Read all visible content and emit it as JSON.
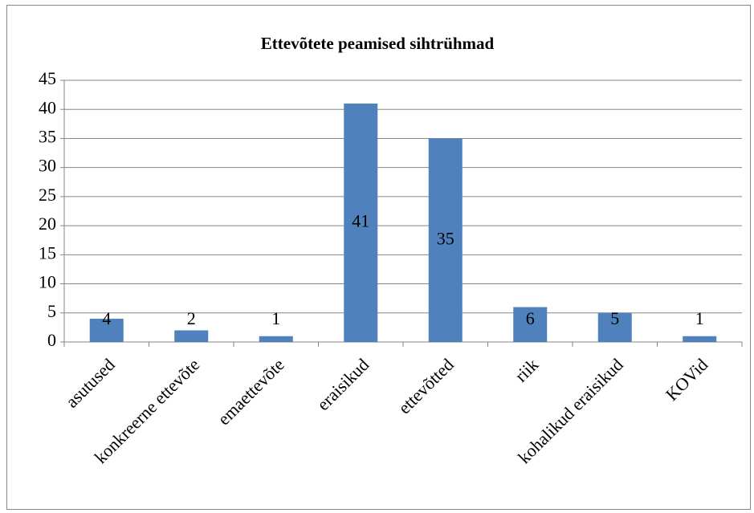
{
  "chart_data": {
    "type": "bar",
    "title": "Ettevõtete peamised sihtrühmad",
    "categories": [
      "asutused",
      "konkreerne ettevõte",
      "emaettevõte",
      "eraisikud",
      "ettevõtted",
      "riik",
      "kohalikud eraisikud",
      "KOVid"
    ],
    "values": [
      4,
      2,
      1,
      41,
      35,
      6,
      5,
      1
    ],
    "color": "#4f81bd",
    "ylim": [
      0,
      45
    ],
    "yticks": [
      0,
      5,
      10,
      15,
      20,
      25,
      30,
      35,
      40,
      45
    ],
    "grid": true
  }
}
